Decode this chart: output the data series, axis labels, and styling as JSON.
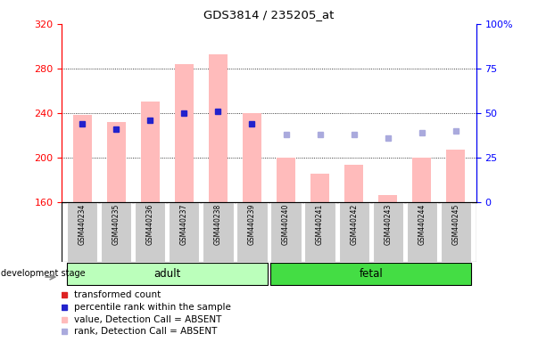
{
  "title": "GDS3814 / 235205_at",
  "samples": [
    "GSM440234",
    "GSM440235",
    "GSM440236",
    "GSM440237",
    "GSM440238",
    "GSM440239",
    "GSM440240",
    "GSM440241",
    "GSM440242",
    "GSM440243",
    "GSM440244",
    "GSM440245"
  ],
  "bar_values": [
    238,
    232,
    250,
    284,
    293,
    240,
    200,
    185,
    193,
    166,
    200,
    207
  ],
  "rank_values": [
    44,
    41,
    46,
    50,
    51,
    44,
    38,
    38,
    38,
    36,
    39,
    40
  ],
  "bar_absent": [
    true,
    true,
    true,
    true,
    true,
    true,
    true,
    true,
    true,
    true,
    true,
    true
  ],
  "rank_absent": [
    false,
    false,
    false,
    false,
    false,
    false,
    true,
    true,
    true,
    true,
    true,
    true
  ],
  "n_adult": 6,
  "n_fetal": 6,
  "ylim_left": [
    160,
    320
  ],
  "ylim_right": [
    0,
    100
  ],
  "yticks_left": [
    160,
    200,
    240,
    280,
    320
  ],
  "yticks_right": [
    0,
    25,
    50,
    75,
    100
  ],
  "bar_color_absent": "#ffbbbb",
  "bar_color_present": "#dd2222",
  "rank_color_absent": "#aaaadd",
  "rank_color_present": "#2222cc",
  "adult_bg": "#bbffbb",
  "fetal_bg": "#44dd44",
  "group_bg": "#cccccc",
  "legend_items": [
    {
      "label": "transformed count",
      "color": "#dd2222",
      "marker": "s"
    },
    {
      "label": "percentile rank within the sample",
      "color": "#2222cc",
      "marker": "s"
    },
    {
      "label": "value, Detection Call = ABSENT",
      "color": "#ffbbbb",
      "marker": "s"
    },
    {
      "label": "rank, Detection Call = ABSENT",
      "color": "#aaaadd",
      "marker": "s"
    }
  ]
}
